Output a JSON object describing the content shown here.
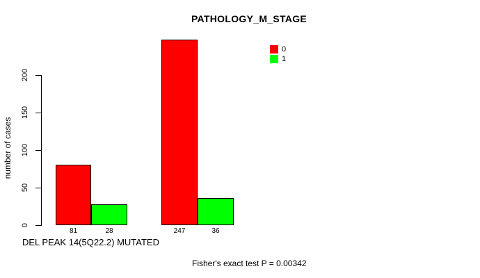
{
  "chart_data": {
    "type": "bar",
    "title": "PATHOLOGY_M_STAGE",
    "xlabel": "DEL PEAK 14(5Q22.2) MUTATED",
    "ylabel": "number of cases",
    "categories": [
      "",
      ""
    ],
    "series": [
      {
        "name": "0",
        "color": "#ff0000",
        "values": [
          81,
          247
        ]
      },
      {
        "name": "1",
        "color": "#00ff00",
        "values": [
          28,
          36
        ]
      }
    ],
    "bar_value_labels": [
      "81",
      "28",
      "247",
      "36"
    ],
    "yticks": [
      0,
      50,
      100,
      150,
      200
    ],
    "ylim": [
      0,
      200
    ],
    "grid": false,
    "legend": {
      "position": "inner-top-right-of-plot",
      "entries": [
        {
          "label": "0",
          "color": "#ff0000"
        },
        {
          "label": "1",
          "color": "#00ff00"
        }
      ]
    },
    "annotation": "Fisher's exact test P = 0.00342",
    "colors": {
      "series_0": "#ff0000",
      "series_1": "#00ff00",
      "axis": "#000000",
      "background": "#ffffff",
      "text": "#000000"
    }
  }
}
